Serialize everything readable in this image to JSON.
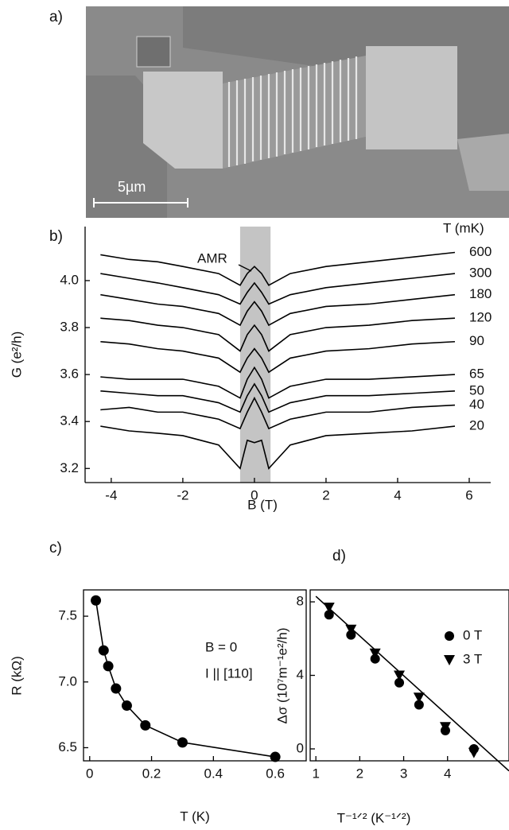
{
  "panel_a": {
    "label": "a)",
    "scale_bar": "5µm"
  },
  "chart_data": [
    {
      "type": "line",
      "label": "b)",
      "xlabel": "B (T)",
      "ylabel": "G (e²/h)",
      "legend_title": "T (mK)",
      "annotation": "AMR",
      "highlight_x": [
        -0.4,
        0.45
      ],
      "x": [
        -4.3,
        -3.5,
        -2.7,
        -2,
        -1,
        -0.4,
        -0.2,
        0,
        0.2,
        0.4,
        1,
        2,
        3.2,
        4.4,
        5.6
      ],
      "series": [
        {
          "name": "600",
          "color": "#000000",
          "values": [
            4.11,
            4.09,
            4.08,
            4.06,
            4.03,
            3.98,
            4.03,
            4.06,
            4.03,
            3.98,
            4.03,
            4.06,
            4.08,
            4.1,
            4.12
          ]
        },
        {
          "name": "300",
          "color": "#000000",
          "values": [
            4.03,
            4.01,
            3.99,
            3.97,
            3.94,
            3.9,
            3.95,
            3.99,
            3.95,
            3.9,
            3.94,
            3.97,
            3.99,
            4.01,
            4.03
          ]
        },
        {
          "name": "180",
          "color": "#000000",
          "values": [
            3.94,
            3.92,
            3.9,
            3.89,
            3.86,
            3.81,
            3.87,
            3.91,
            3.87,
            3.81,
            3.86,
            3.89,
            3.9,
            3.92,
            3.94
          ]
        },
        {
          "name": "120",
          "color": "#000000",
          "values": [
            3.84,
            3.83,
            3.81,
            3.8,
            3.77,
            3.7,
            3.77,
            3.81,
            3.77,
            3.7,
            3.77,
            3.8,
            3.81,
            3.83,
            3.84
          ]
        },
        {
          "name": "90",
          "color": "#000000",
          "values": [
            3.74,
            3.73,
            3.71,
            3.7,
            3.67,
            3.61,
            3.67,
            3.71,
            3.67,
            3.61,
            3.67,
            3.7,
            3.71,
            3.73,
            3.74
          ]
        },
        {
          "name": "65",
          "color": "#000000",
          "values": [
            3.59,
            3.58,
            3.58,
            3.58,
            3.55,
            3.5,
            3.58,
            3.63,
            3.58,
            3.5,
            3.55,
            3.58,
            3.58,
            3.59,
            3.6
          ]
        },
        {
          "name": "50",
          "color": "#000000",
          "values": [
            3.53,
            3.52,
            3.51,
            3.51,
            3.48,
            3.44,
            3.51,
            3.56,
            3.51,
            3.44,
            3.48,
            3.51,
            3.51,
            3.52,
            3.53
          ]
        },
        {
          "name": "40",
          "color": "#000000",
          "values": [
            3.45,
            3.46,
            3.44,
            3.44,
            3.41,
            3.37,
            3.44,
            3.5,
            3.44,
            3.37,
            3.41,
            3.44,
            3.44,
            3.46,
            3.47
          ]
        },
        {
          "name": "20",
          "color": "#000000",
          "values": [
            3.38,
            3.36,
            3.35,
            3.34,
            3.3,
            3.2,
            3.32,
            3.31,
            3.32,
            3.2,
            3.3,
            3.34,
            3.35,
            3.36,
            3.38
          ]
        }
      ],
      "xlim": [
        -4.73,
        6.6
      ],
      "ylim": [
        3.14,
        4.23
      ],
      "xticks": [
        -4,
        -2,
        0,
        2,
        4,
        6
      ],
      "yticks": [
        3.2,
        3.4,
        3.6,
        3.8,
        {
          "value": 4,
          "label": "4.0"
        }
      ]
    },
    {
      "type": "line",
      "label": "c)",
      "xlabel": "T (K)",
      "ylabel": "R (kΩ)",
      "annotations": [
        "B = 0",
        "I || [110]"
      ],
      "markers": true,
      "x": [
        0.02,
        0.045,
        0.06,
        0.085,
        0.12,
        0.18,
        0.3,
        0.6
      ],
      "series": [
        {
          "color": "#000000",
          "values": [
            7.62,
            7.24,
            7.12,
            6.95,
            6.82,
            6.67,
            6.54,
            6.43
          ]
        }
      ],
      "xlim": [
        -0.02,
        0.7
      ],
      "ylim": [
        6.4,
        7.7
      ],
      "xticks": [
        0,
        0.2,
        0.4,
        0.6
      ],
      "yticks": [
        6.5,
        {
          "value": 7,
          "label": "7.0"
        },
        7.5
      ]
    },
    {
      "type": "scatter",
      "label": "d)",
      "xlabel": "T⁻¹ᐟ² (K⁻¹ᐟ²)",
      "ylabel": "Δσ (10⁷m⁻¹e²/h)",
      "series": [
        {
          "name": "0 T",
          "marker": "circle",
          "color": "#000000",
          "x": [
            1.3,
            1.8,
            2.35,
            2.9,
            3.35,
            3.95,
            4.6
          ],
          "values": [
            7.3,
            6.2,
            4.9,
            3.6,
            2.4,
            1.0,
            0.0
          ]
        },
        {
          "name": "3 T",
          "marker": "triangle-down",
          "color": "#000000",
          "x": [
            1.3,
            1.8,
            2.35,
            2.9,
            3.35,
            3.95,
            4.6
          ],
          "values": [
            7.7,
            6.5,
            5.2,
            4.0,
            2.8,
            1.2,
            -0.2
          ]
        }
      ],
      "fit_line": {
        "x": [
          1,
          5.4
        ],
        "values": [
          8.3,
          -1.2
        ]
      },
      "xlim": [
        0.87,
        5.4
      ],
      "ylim": [
        -0.65,
        8.65
      ],
      "xticks": [
        1,
        2,
        3,
        4
      ],
      "yticks": [
        0,
        4,
        8
      ]
    }
  ]
}
